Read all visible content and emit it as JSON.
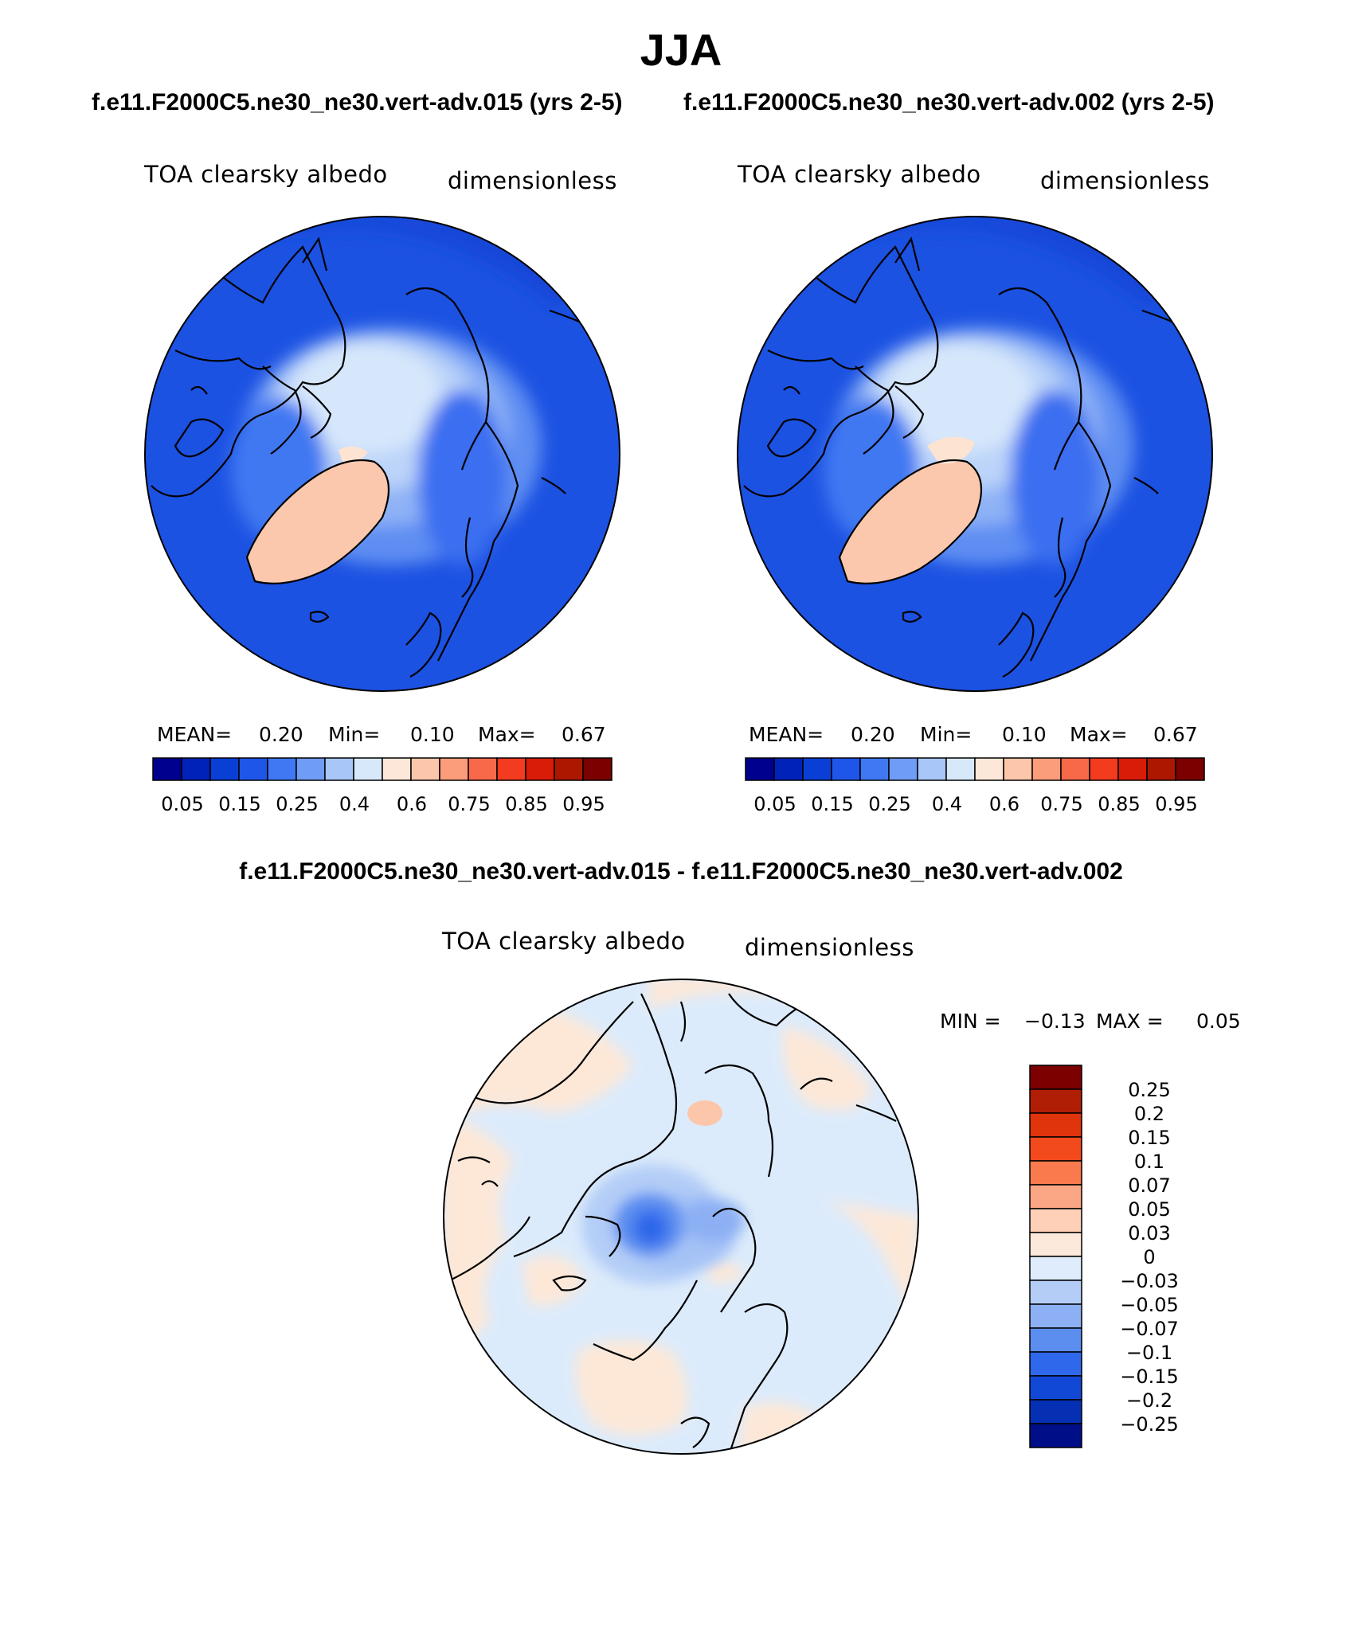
{
  "title": "JJA",
  "panels": [
    {
      "case_title": "f.e11.F2000C5.ne30_ne30.vert-adv.015 (yrs 2-5)",
      "variable": "TOA clearsky albedo",
      "units": "dimensionless",
      "stats": {
        "mean_label": "MEAN=",
        "mean": "0.20",
        "min_label": "Min=",
        "min": "0.10",
        "max_label": "Max=",
        "max": "0.67"
      },
      "colorbar_labels": [
        "0.05",
        "0.15",
        "0.25",
        "0.4",
        "0.6",
        "0.75",
        "0.85",
        "0.95"
      ]
    },
    {
      "case_title": "f.e11.F2000C5.ne30_ne30.vert-adv.002 (yrs 2-5)",
      "variable": "TOA clearsky albedo",
      "units": "dimensionless",
      "stats": {
        "mean_label": "MEAN=",
        "mean": "0.20",
        "min_label": "Min=",
        "min": "0.10",
        "max_label": "Max=",
        "max": "0.67"
      },
      "colorbar_labels": [
        "0.05",
        "0.15",
        "0.25",
        "0.4",
        "0.6",
        "0.75",
        "0.85",
        "0.95"
      ]
    }
  ],
  "difference": {
    "title": "f.e11.F2000C5.ne30_ne30.vert-adv.015 - f.e11.F2000C5.ne30_ne30.vert-adv.002",
    "variable": "TOA clearsky albedo",
    "units": "dimensionless",
    "min_label": "MIN =",
    "min": "−0.13",
    "max_label": "MAX =",
    "max": "0.05",
    "colorbar_labels": [
      "0.25",
      "0.2",
      "0.15",
      "0.1",
      "0.07",
      "0.05",
      "0.03",
      "0",
      "−0.03",
      "−0.05",
      "−0.07",
      "−0.1",
      "−0.15",
      "−0.2",
      "−0.25"
    ]
  },
  "colors": {
    "abs_scale": [
      "#00008f",
      "#0022b8",
      "#0a3fd6",
      "#1f56ea",
      "#3f78f2",
      "#6f9cf6",
      "#a8c6f8",
      "#d7e8fb",
      "#fde7d8",
      "#fcc6aa",
      "#fb9d7a",
      "#f8694a",
      "#f23b1f",
      "#d81c08",
      "#ac1700",
      "#7c0000"
    ],
    "diff_scale": [
      "#7c0000",
      "#b01e05",
      "#e0340c",
      "#f34a1d",
      "#f87a4d",
      "#fba684",
      "#fdd0b7",
      "#fde9dc",
      "#deecfb",
      "#b3cdf7",
      "#8db0f4",
      "#5c8ef0",
      "#2f68ea",
      "#1248d6",
      "#0630b3",
      "#000e88"
    ],
    "ocean_abs": "#1c52e2",
    "land_abs": "#2b60e8",
    "sea_ice_abs": "#d6e7fb",
    "greenland_abs": "#fcc8ad",
    "diff_neutral_blue": "#dcebfb",
    "diff_neutral_peach": "#fde8d8"
  }
}
